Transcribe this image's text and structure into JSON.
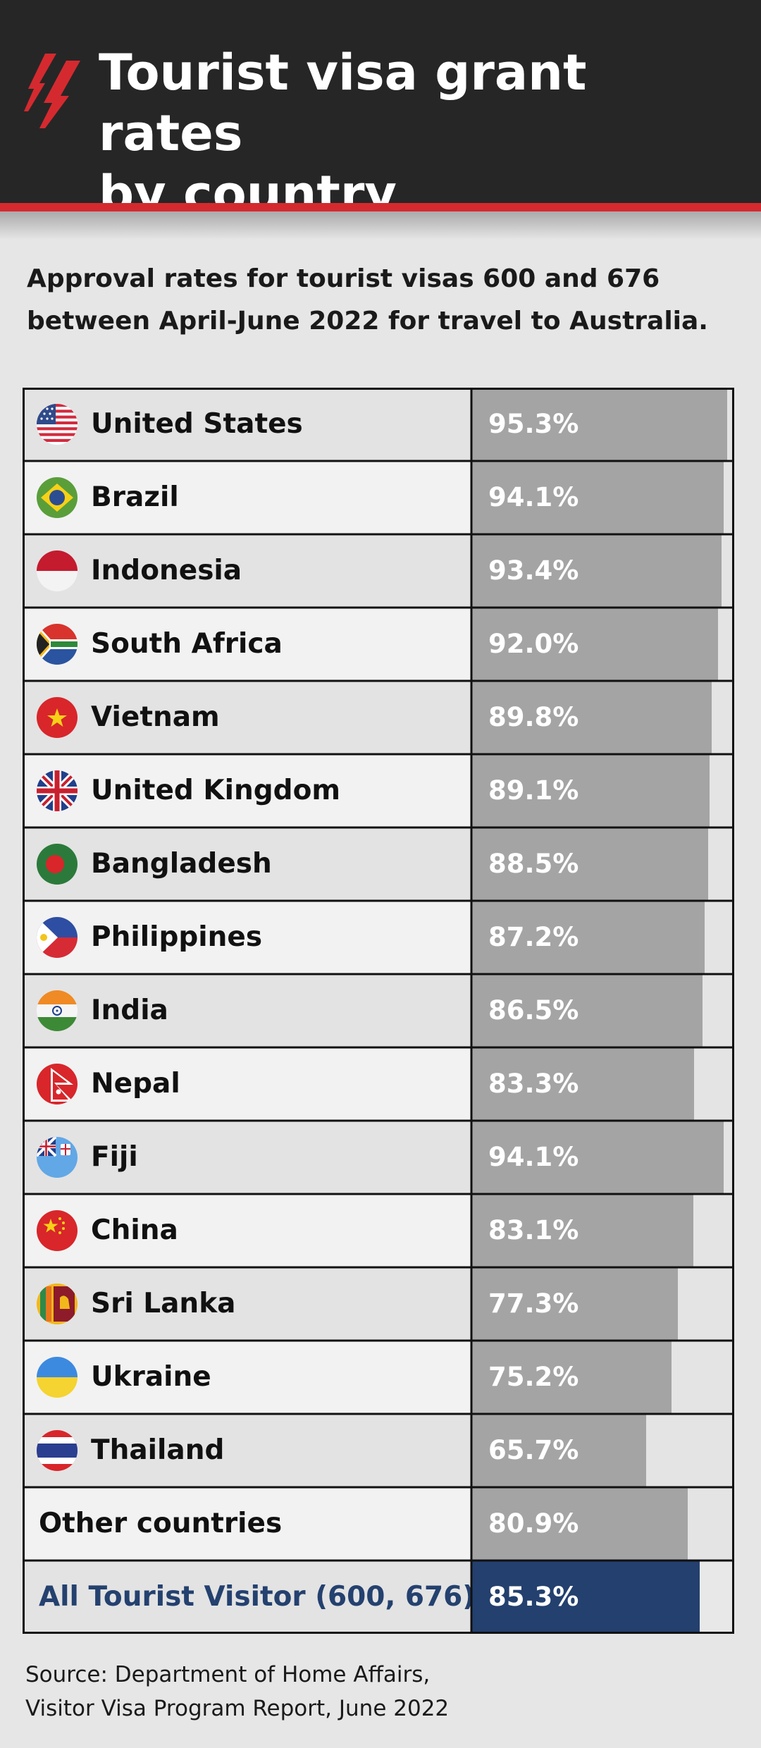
{
  "header": {
    "title": "Tourist visa grant rates\nby country",
    "subtitle": "Approval rates for tourist visas 600 and 676\nbetween April-June 2022 for travel to Australia.",
    "logo_icon": "sbs-logo-icon",
    "colors": {
      "background": "#262626",
      "accent": "#d42a2f"
    }
  },
  "chart_data": {
    "type": "bar",
    "orientation": "horizontal",
    "title": "Tourist visa grant rates by country",
    "subtitle": "Approval rates for tourist visas 600 and 676 between April-June 2022 for travel to Australia.",
    "categories": [
      "United States",
      "Brazil",
      "Indonesia",
      "South Africa",
      "Vietnam",
      "United Kingdom",
      "Bangladesh",
      "Philippines",
      "India",
      "Nepal",
      "Fiji",
      "China",
      "Sri Lanka",
      "Ukraine",
      "Thailand",
      "Other countries",
      "All Tourist Visitor (600, 676)"
    ],
    "values": [
      95.3,
      94.1,
      93.4,
      92.0,
      89.8,
      89.1,
      88.5,
      87.2,
      86.5,
      83.3,
      94.1,
      83.1,
      77.3,
      75.2,
      65.7,
      80.9,
      85.3
    ],
    "labels": [
      "95.3%",
      "94.1%",
      "93.4%",
      "92.0%",
      "89.8%",
      "89.1%",
      "88.5%",
      "87.2%",
      "86.5%",
      "83.3%",
      "94.1%",
      "83.1%",
      "77.3%",
      "75.2%",
      "65.7%",
      "80.9%",
      "85.3%"
    ],
    "flags": [
      "us-flag-icon",
      "brazil-flag-icon",
      "indonesia-flag-icon",
      "south-africa-flag-icon",
      "vietnam-flag-icon",
      "uk-flag-icon",
      "bangladesh-flag-icon",
      "philippines-flag-icon",
      "india-flag-icon",
      "nepal-flag-icon",
      "fiji-flag-icon",
      "china-flag-icon",
      "sri-lanka-flag-icon",
      "ukraine-flag-icon",
      "thailand-flag-icon",
      "",
      ""
    ],
    "unit": "%",
    "xlim": [
      0,
      100
    ],
    "highlight_index": 16,
    "colors": {
      "bar": "#a4a4a4",
      "highlight": "#23406e",
      "label": "#ffffff",
      "total_text": "#24416f"
    },
    "grid": true,
    "legend": "none"
  },
  "footer": {
    "source": "Source: Department of Home Affairs,\nVisitor Visa Program Report, June 2022"
  }
}
